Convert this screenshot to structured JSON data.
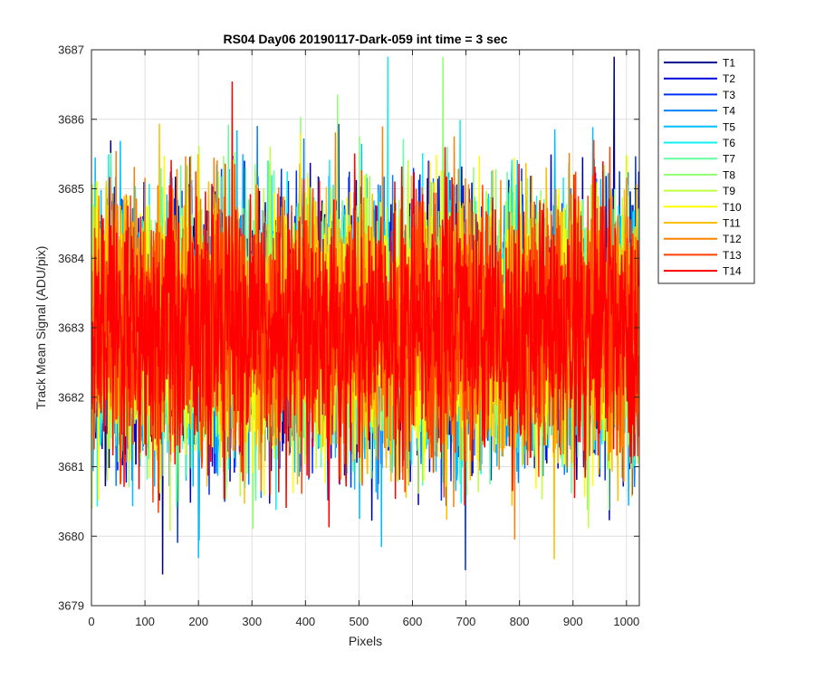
{
  "chart_data": {
    "type": "line",
    "title": "RS04 Day06 20190117-Dark-059 int time = 3 sec",
    "xlabel": "Pixels",
    "ylabel": "Track Mean Signal (ADU/pix)",
    "xlim": [
      0,
      1024
    ],
    "ylim": [
      3679,
      3687
    ],
    "xticks": [
      0,
      100,
      200,
      300,
      400,
      500,
      600,
      700,
      800,
      900,
      1000
    ],
    "yticks": [
      3679,
      3680,
      3681,
      3682,
      3683,
      3684,
      3685,
      3686,
      3687
    ],
    "grid": true,
    "legend_position": "outside-top-right",
    "n_points_per_series": 1024,
    "noise": {
      "center": 3683.0,
      "typical_spread": 0.95,
      "peak_max": 3686.9,
      "trough_min": 3679.45
    },
    "series": [
      {
        "name": "T1",
        "color": "#00008f"
      },
      {
        "name": "T2",
        "color": "#0000df"
      },
      {
        "name": "T3",
        "color": "#0030ff"
      },
      {
        "name": "T4",
        "color": "#0080ff"
      },
      {
        "name": "T5",
        "color": "#00bfff"
      },
      {
        "name": "T6",
        "color": "#10efef"
      },
      {
        "name": "T7",
        "color": "#60ffa0"
      },
      {
        "name": "T8",
        "color": "#8fff70"
      },
      {
        "name": "T9",
        "color": "#bfff40"
      },
      {
        "name": "T10",
        "color": "#ffff00"
      },
      {
        "name": "T11",
        "color": "#ffbf00"
      },
      {
        "name": "T12",
        "color": "#ff8000"
      },
      {
        "name": "T13",
        "color": "#ff4000"
      },
      {
        "name": "T14",
        "color": "#ff0000"
      }
    ]
  }
}
